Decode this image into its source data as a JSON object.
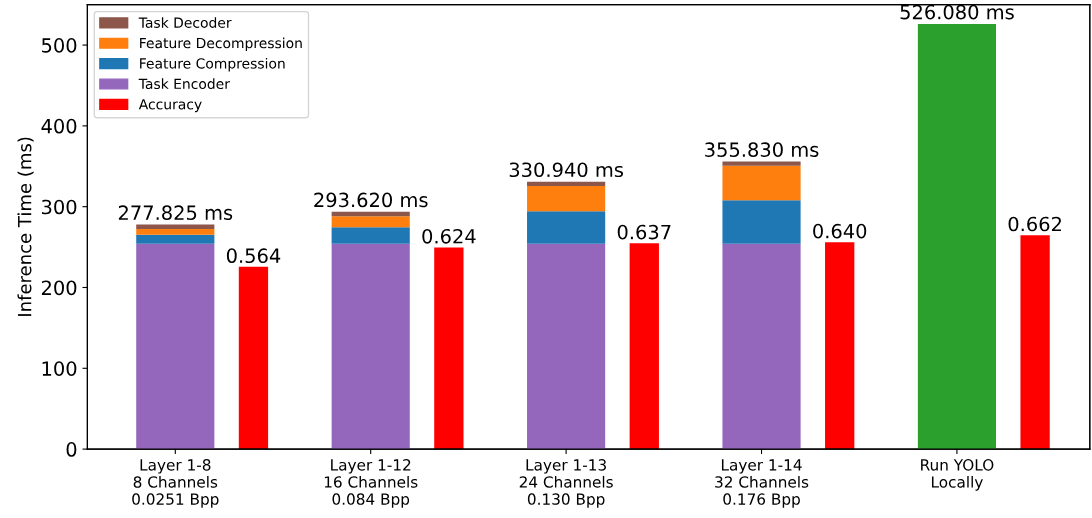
{
  "chart_data": {
    "type": "bar",
    "stacked": true,
    "ylabel": "Inference Time (ms)",
    "categories": [
      "Layer 1-8\n8 Channels\n0.0251 Bpp",
      "Layer 1-12\n16 Channels\n0.084 Bpp",
      "Layer 1-13\n24 Channels\n0.130 Bpp",
      "Layer 1-14\n32 Channels\n0.176 Bpp",
      "Run YOLO\nLocally"
    ],
    "series": [
      {
        "name": "Task Encoder",
        "color": "#9467bd",
        "values": [
          254,
          254,
          254,
          254,
          null
        ]
      },
      {
        "name": "Feature Compression",
        "color": "#1f77b4",
        "values": [
          11.4,
          20.5,
          40.4,
          54,
          null
        ]
      },
      {
        "name": "Feature Decompression",
        "color": "#ff7f0e",
        "values": [
          7.0,
          13.7,
          31.1,
          42.7,
          null
        ]
      },
      {
        "name": "Task Decoder",
        "color": "#8c564b",
        "values": [
          5.425,
          5.42,
          5.44,
          5.13,
          null
        ]
      },
      {
        "color": "#2ca02c",
        "values": [
          null,
          null,
          null,
          null,
          526.08
        ]
      },
      {
        "name": "Accuracy",
        "color": "#ff0000",
        "axis": "y2",
        "values": [
          0.564,
          0.624,
          0.637,
          0.64,
          0.662
        ],
        "value_labels": [
          "0.564",
          "0.624",
          "0.637",
          "0.640",
          "0.662"
        ]
      }
    ],
    "totals": [
      "277.825 ms",
      "293.620 ms",
      "330.940 ms",
      "355.830 ms",
      "526.080 ms"
    ],
    "ylim": [
      0,
      550
    ],
    "yticks": [
      0,
      100,
      200,
      300,
      400,
      500
    ],
    "y2lim": [
      0,
      1.375
    ],
    "grid": false,
    "legend": "top left"
  }
}
